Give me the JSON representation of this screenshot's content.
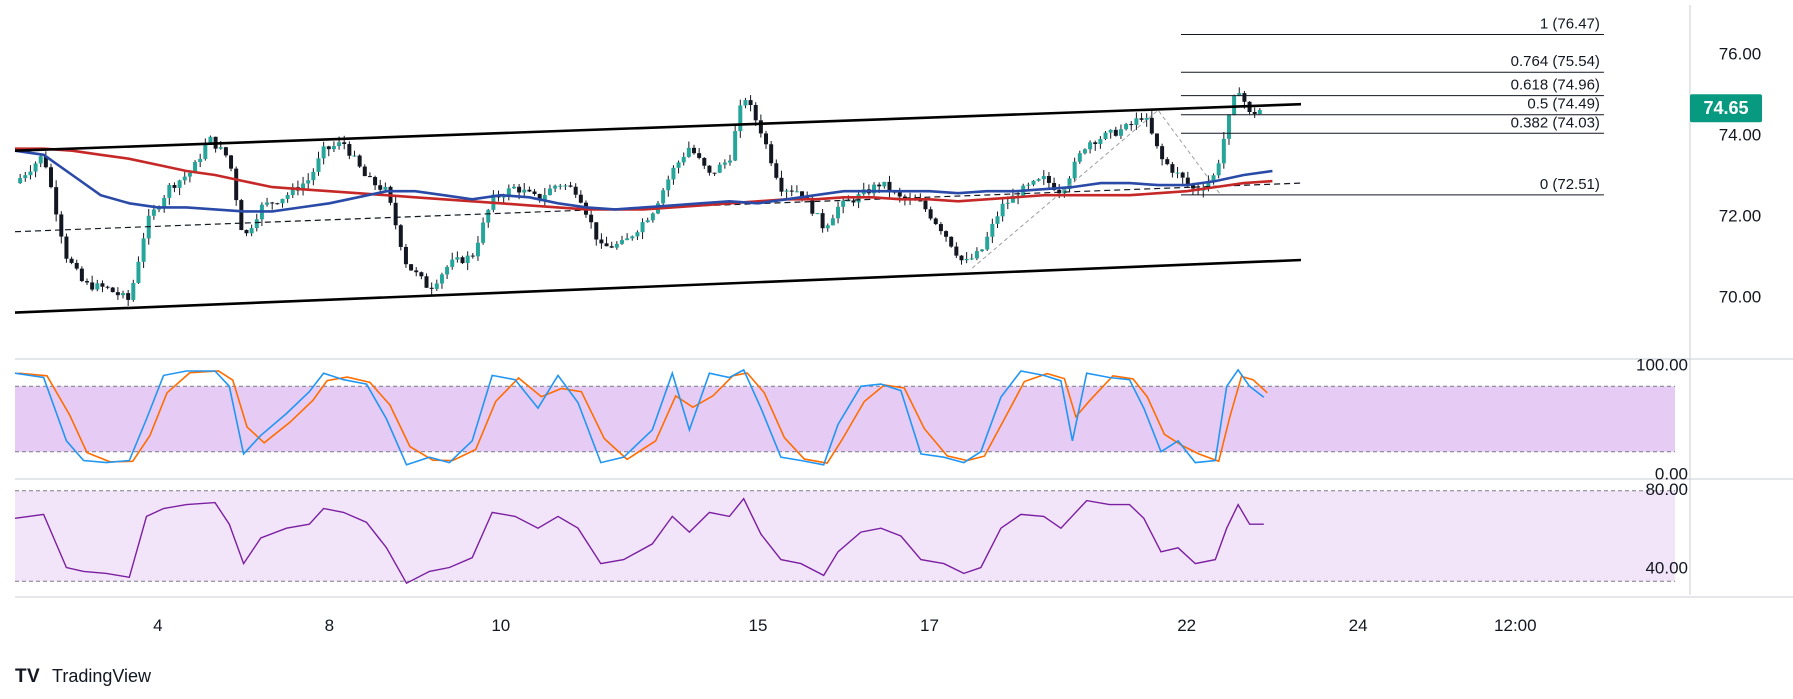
{
  "brand": {
    "name": "TradingView"
  },
  "colors": {
    "up": "#26a69a",
    "down": "#131722",
    "wick": "#131722",
    "ma_fast": "#2a4aa8",
    "ma_slow": "#c62828",
    "channel": "#000000",
    "fib": "#131722",
    "stoch_k": "#2196f3",
    "stoch_d": "#ff6d00",
    "stoch_band": "#e6ccf5",
    "rsi": "#7b1fa2",
    "rsi_band": "#f3e5f9",
    "price_tag": "#089981",
    "grid": "#e0e3eb"
  },
  "chart_data": [
    {
      "type": "candlestick",
      "pane": "price",
      "x_range": [
        0,
        58
      ],
      "ylim": [
        68.8,
        77.2
      ],
      "y_ticks": [
        70.0,
        72.0,
        74.0,
        76.0
      ],
      "y_tick_labels": [
        "70.00",
        "72.00",
        "74.00",
        "76.00"
      ],
      "x_ticks": [
        {
          "x": 5,
          "label": "4"
        },
        {
          "x": 11,
          "label": "8"
        },
        {
          "x": 17,
          "label": "10"
        },
        {
          "x": 26,
          "label": "15"
        },
        {
          "x": 32,
          "label": "17"
        },
        {
          "x": 41,
          "label": "22"
        },
        {
          "x": 47,
          "label": "24"
        },
        {
          "x": 52.5,
          "label": "12:00"
        }
      ],
      "last_price": 74.65,
      "last_price_label": "74.65",
      "close_path": [
        [
          0,
          72.8
        ],
        [
          1,
          73.5
        ],
        [
          1.8,
          71.0
        ],
        [
          2.4,
          70.3
        ],
        [
          3.2,
          70.2
        ],
        [
          4,
          69.9
        ],
        [
          4.6,
          71.8
        ],
        [
          5.4,
          72.7
        ],
        [
          6.2,
          73.1
        ],
        [
          6.8,
          73.9
        ],
        [
          7.5,
          73.4
        ],
        [
          8,
          71.4
        ],
        [
          8.6,
          72.2
        ],
        [
          9.5,
          72.5
        ],
        [
          10.3,
          72.9
        ],
        [
          10.8,
          73.6
        ],
        [
          11.5,
          73.8
        ],
        [
          12.3,
          72.9
        ],
        [
          13,
          72.6
        ],
        [
          13.7,
          70.8
        ],
        [
          14.5,
          70.2
        ],
        [
          15.2,
          70.8
        ],
        [
          16,
          71.0
        ],
        [
          16.7,
          72.4
        ],
        [
          17.5,
          72.7
        ],
        [
          18.3,
          72.4
        ],
        [
          19,
          72.8
        ],
        [
          19.7,
          72.6
        ],
        [
          20.5,
          71.2
        ],
        [
          21.3,
          71.3
        ],
        [
          22.3,
          72.1
        ],
        [
          23,
          73.1
        ],
        [
          23.6,
          73.7
        ],
        [
          24.3,
          73.0
        ],
        [
          25,
          73.4
        ],
        [
          25.5,
          75.0
        ],
        [
          26.1,
          74.1
        ],
        [
          26.8,
          72.7
        ],
        [
          27.5,
          72.6
        ],
        [
          28.3,
          71.7
        ],
        [
          28.8,
          72.2
        ],
        [
          29.6,
          72.5
        ],
        [
          30.3,
          72.8
        ],
        [
          31,
          72.4
        ],
        [
          31.7,
          72.3
        ],
        [
          32.5,
          71.6
        ],
        [
          33.2,
          70.8
        ],
        [
          33.8,
          71.1
        ],
        [
          34.5,
          72.2
        ],
        [
          35.2,
          72.6
        ],
        [
          36,
          72.9
        ],
        [
          36.6,
          72.6
        ],
        [
          37.5,
          73.8
        ],
        [
          38.3,
          74.0
        ],
        [
          39,
          74.2
        ],
        [
          39.5,
          74.5
        ],
        [
          40.1,
          73.4
        ],
        [
          40.7,
          73.0
        ],
        [
          41.3,
          72.6
        ],
        [
          42,
          73.0
        ],
        [
          42.4,
          74.2
        ],
        [
          42.8,
          75.2
        ],
        [
          43.2,
          74.5
        ],
        [
          43.7,
          74.65
        ]
      ],
      "overlays": {
        "ma_fast": [
          [
            0,
            73.6
          ],
          [
            1,
            73.5
          ],
          [
            2,
            73.0
          ],
          [
            3,
            72.5
          ],
          [
            4,
            72.3
          ],
          [
            5,
            72.2
          ],
          [
            6,
            72.2
          ],
          [
            7,
            72.15
          ],
          [
            8,
            72.1
          ],
          [
            9,
            72.1
          ],
          [
            10,
            72.2
          ],
          [
            11,
            72.3
          ],
          [
            12,
            72.45
          ],
          [
            13,
            72.6
          ],
          [
            14,
            72.6
          ],
          [
            15,
            72.5
          ],
          [
            16,
            72.4
          ],
          [
            17,
            72.5
          ],
          [
            18,
            72.45
          ],
          [
            19,
            72.3
          ],
          [
            20,
            72.2
          ],
          [
            21,
            72.15
          ],
          [
            22,
            72.2
          ],
          [
            23,
            72.25
          ],
          [
            24,
            72.3
          ],
          [
            25,
            72.35
          ],
          [
            26,
            72.3
          ],
          [
            27,
            72.4
          ],
          [
            28,
            72.5
          ],
          [
            29,
            72.6
          ],
          [
            30,
            72.6
          ],
          [
            31,
            72.6
          ],
          [
            32,
            72.6
          ],
          [
            33,
            72.55
          ],
          [
            34,
            72.6
          ],
          [
            35,
            72.6
          ],
          [
            36,
            72.65
          ],
          [
            37,
            72.7
          ],
          [
            38,
            72.8
          ],
          [
            39,
            72.8
          ],
          [
            40,
            72.75
          ],
          [
            41,
            72.75
          ],
          [
            42,
            72.85
          ],
          [
            43,
            73.0
          ],
          [
            44,
            73.1
          ]
        ],
        "ma_slow": [
          [
            0,
            73.65
          ],
          [
            1,
            73.65
          ],
          [
            2,
            73.6
          ],
          [
            3,
            73.5
          ],
          [
            4,
            73.4
          ],
          [
            5,
            73.25
          ],
          [
            6,
            73.1
          ],
          [
            7,
            73.0
          ],
          [
            8,
            72.85
          ],
          [
            9,
            72.7
          ],
          [
            10,
            72.65
          ],
          [
            11,
            72.6
          ],
          [
            12,
            72.55
          ],
          [
            13,
            72.5
          ],
          [
            14,
            72.45
          ],
          [
            15,
            72.4
          ],
          [
            16,
            72.35
          ],
          [
            17,
            72.3
          ],
          [
            18,
            72.25
          ],
          [
            19,
            72.2
          ],
          [
            20,
            72.15
          ],
          [
            21,
            72.15
          ],
          [
            22,
            72.15
          ],
          [
            23,
            72.2
          ],
          [
            24,
            72.25
          ],
          [
            25,
            72.3
          ],
          [
            26,
            72.35
          ],
          [
            27,
            72.4
          ],
          [
            28,
            72.4
          ],
          [
            29,
            72.45
          ],
          [
            30,
            72.45
          ],
          [
            31,
            72.4
          ],
          [
            32,
            72.4
          ],
          [
            33,
            72.35
          ],
          [
            34,
            72.4
          ],
          [
            35,
            72.45
          ],
          [
            36,
            72.5
          ],
          [
            37,
            72.5
          ],
          [
            38,
            72.5
          ],
          [
            39,
            72.5
          ],
          [
            40,
            72.55
          ],
          [
            41,
            72.6
          ],
          [
            42,
            72.7
          ],
          [
            43,
            72.8
          ],
          [
            44,
            72.85
          ]
        ],
        "channel_upper": [
          [
            0,
            73.6
          ],
          [
            45,
            74.75
          ]
        ],
        "channel_lower": [
          [
            0,
            69.6
          ],
          [
            45,
            70.9
          ]
        ],
        "midline": [
          [
            0,
            71.6
          ],
          [
            45,
            72.8
          ]
        ],
        "fib_swing": [
          [
            33.5,
            70.7
          ],
          [
            40,
            74.6
          ],
          [
            42.2,
            72.5
          ]
        ]
      },
      "fib_levels": [
        {
          "value": 76.47,
          "label": "1 (76.47)"
        },
        {
          "value": 75.54,
          "label": "0.764 (75.54)"
        },
        {
          "value": 74.96,
          "label": "0.618 (74.96)"
        },
        {
          "value": 74.49,
          "label": "0.5 (74.49)"
        },
        {
          "value": 74.03,
          "label": "0.382 (74.03)"
        },
        {
          "value": 72.51,
          "label": "0 (72.51)"
        }
      ],
      "fib_x_range": [
        40.8,
        55.6
      ]
    },
    {
      "type": "line",
      "pane": "stochastic",
      "ylim": [
        -5,
        105
      ],
      "y_ticks": [
        0,
        100
      ],
      "y_tick_labels": [
        "0.00",
        "100.00"
      ],
      "band": [
        20,
        80
      ],
      "path": [
        [
          0,
          92
        ],
        [
          1,
          88
        ],
        [
          1.8,
          30
        ],
        [
          2.4,
          12
        ],
        [
          3.2,
          10
        ],
        [
          4,
          12
        ],
        [
          4.6,
          50
        ],
        [
          5.2,
          90
        ],
        [
          6,
          94
        ],
        [
          7,
          94
        ],
        [
          7.5,
          80
        ],
        [
          8,
          18
        ],
        [
          8.6,
          35
        ],
        [
          9.5,
          55
        ],
        [
          10.3,
          75
        ],
        [
          10.8,
          92
        ],
        [
          11.5,
          86
        ],
        [
          12.3,
          82
        ],
        [
          13,
          50
        ],
        [
          13.7,
          8
        ],
        [
          14.5,
          15
        ],
        [
          15.2,
          10
        ],
        [
          16,
          30
        ],
        [
          16.7,
          90
        ],
        [
          17.5,
          86
        ],
        [
          18.3,
          60
        ],
        [
          19,
          90
        ],
        [
          19.7,
          65
        ],
        [
          20.5,
          10
        ],
        [
          21.3,
          15
        ],
        [
          22.3,
          40
        ],
        [
          23,
          92
        ],
        [
          23.6,
          40
        ],
        [
          24.3,
          92
        ],
        [
          25,
          88
        ],
        [
          25.5,
          95
        ],
        [
          26.1,
          60
        ],
        [
          26.8,
          15
        ],
        [
          27.5,
          12
        ],
        [
          28.3,
          8
        ],
        [
          28.8,
          45
        ],
        [
          29.6,
          80
        ],
        [
          30.3,
          82
        ],
        [
          31,
          76
        ],
        [
          31.7,
          18
        ],
        [
          32.5,
          15
        ],
        [
          33.2,
          10
        ],
        [
          33.8,
          20
        ],
        [
          34.5,
          70
        ],
        [
          35.2,
          94
        ],
        [
          36,
          90
        ],
        [
          36.6,
          85
        ],
        [
          37,
          30
        ],
        [
          37.5,
          92
        ],
        [
          38.3,
          88
        ],
        [
          39,
          86
        ],
        [
          39.5,
          60
        ],
        [
          40.1,
          20
        ],
        [
          40.7,
          30
        ],
        [
          41.3,
          10
        ],
        [
          42,
          12
        ],
        [
          42.4,
          80
        ],
        [
          42.8,
          95
        ],
        [
          43.2,
          80
        ],
        [
          43.7,
          70
        ]
      ]
    },
    {
      "type": "line",
      "pane": "rsi",
      "ylim": [
        25,
        85
      ],
      "y_ticks": [
        40,
        80
      ],
      "y_tick_labels": [
        "40.00",
        "80.00"
      ],
      "band": [
        33,
        79
      ],
      "path": [
        [
          0,
          65
        ],
        [
          1,
          67
        ],
        [
          1.8,
          40
        ],
        [
          2.4,
          38
        ],
        [
          3.2,
          37
        ],
        [
          4,
          35
        ],
        [
          4.6,
          66
        ],
        [
          5.2,
          70
        ],
        [
          6,
          72
        ],
        [
          7,
          73
        ],
        [
          7.5,
          62
        ],
        [
          8,
          42
        ],
        [
          8.6,
          55
        ],
        [
          9.5,
          60
        ],
        [
          10.3,
          62
        ],
        [
          10.8,
          70
        ],
        [
          11.5,
          68
        ],
        [
          12.3,
          63
        ],
        [
          13,
          50
        ],
        [
          13.7,
          32
        ],
        [
          14.5,
          38
        ],
        [
          15.2,
          40
        ],
        [
          16,
          45
        ],
        [
          16.7,
          68
        ],
        [
          17.5,
          66
        ],
        [
          18.3,
          60
        ],
        [
          19,
          66
        ],
        [
          19.7,
          60
        ],
        [
          20.5,
          42
        ],
        [
          21.3,
          44
        ],
        [
          22.3,
          52
        ],
        [
          23,
          66
        ],
        [
          23.6,
          58
        ],
        [
          24.3,
          68
        ],
        [
          25,
          66
        ],
        [
          25.5,
          75
        ],
        [
          26.1,
          57
        ],
        [
          26.8,
          44
        ],
        [
          27.5,
          42
        ],
        [
          28.3,
          36
        ],
        [
          28.8,
          48
        ],
        [
          29.6,
          58
        ],
        [
          30.3,
          60
        ],
        [
          31,
          56
        ],
        [
          31.7,
          44
        ],
        [
          32.5,
          42
        ],
        [
          33.2,
          37
        ],
        [
          33.8,
          40
        ],
        [
          34.5,
          60
        ],
        [
          35.2,
          67
        ],
        [
          36,
          66
        ],
        [
          36.6,
          60
        ],
        [
          37.5,
          74
        ],
        [
          38.3,
          72
        ],
        [
          39,
          72
        ],
        [
          39.5,
          65
        ],
        [
          40.1,
          48
        ],
        [
          40.7,
          50
        ],
        [
          41.3,
          42
        ],
        [
          42,
          44
        ],
        [
          42.4,
          60
        ],
        [
          42.8,
          72
        ],
        [
          43.2,
          62
        ],
        [
          43.7,
          62
        ]
      ]
    }
  ]
}
